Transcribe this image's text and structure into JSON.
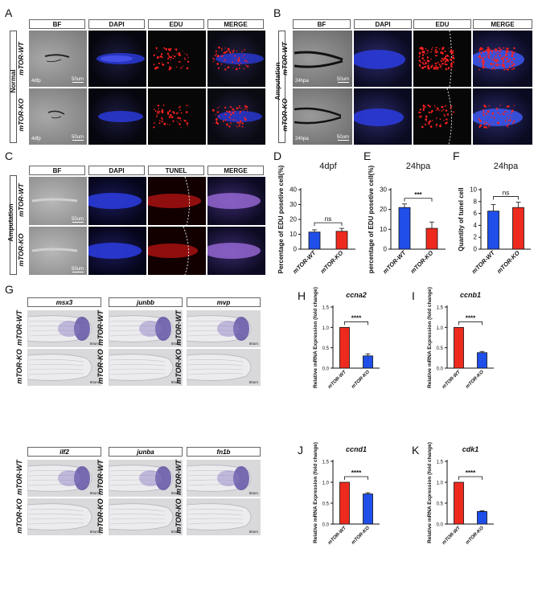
{
  "panels": {
    "A": "A",
    "B": "B",
    "C": "C",
    "D": "D",
    "E": "E",
    "F": "F",
    "G": "G",
    "H": "H",
    "I": "I",
    "J": "J",
    "K": "K"
  },
  "ab_headers": [
    "BF",
    "DAPI",
    "EDU",
    "MERGE"
  ],
  "c_headers": [
    "BF",
    "DAPI",
    "TUNEL",
    "MERGE"
  ],
  "rows": {
    "wt": "mTOR-WT",
    "ko": "mTOR-KO"
  },
  "groups": {
    "normal": "Normal",
    "amputation": "Amputation"
  },
  "stage_labels": {
    "dpf": "4dfp",
    "hpa": "24hpa"
  },
  "scale_label": "50um",
  "gene_labels": [
    "msx3",
    "junbb",
    "mvp",
    "ilf2",
    "junba",
    "fn1b"
  ],
  "colors": {
    "wt_bar": "#1f4fe8",
    "ko_bar": "#ee2a1f",
    "bf_grey": "#8e8e8e",
    "dapi_blue": "#2a3ad8",
    "edu_red": "#ff2020"
  },
  "chart_data": [
    {
      "panel": "D",
      "type": "bar",
      "title": "4dpf",
      "ylabel": "Percentage of EDU posetive cell(%)",
      "categories": [
        "mTOR-WT",
        "mTOR-KO"
      ],
      "values": [
        11.5,
        12.0
      ],
      "errors": [
        1.5,
        2.0
      ],
      "ylim": [
        0,
        40
      ],
      "yticks": [
        0,
        10,
        20,
        30,
        40
      ],
      "bar_colors": [
        "#1f4fe8",
        "#ee2a1f"
      ],
      "significance": "ns"
    },
    {
      "panel": "E",
      "type": "bar",
      "title": "24hpa",
      "ylabel": "percentage of EDU posetive cell(%)",
      "categories": [
        "mTOR-WT",
        "mTOR-KO"
      ],
      "values": [
        21.0,
        10.5
      ],
      "errors": [
        1.8,
        3.2
      ],
      "ylim": [
        0,
        30
      ],
      "yticks": [
        0,
        10,
        20,
        30
      ],
      "bar_colors": [
        "#1f4fe8",
        "#ee2a1f"
      ],
      "significance": "***"
    },
    {
      "panel": "F",
      "type": "bar",
      "title": "24hpa",
      "ylabel": "Quantity of tunel cell",
      "categories": [
        "mTOR-WT",
        "mTOR-KO"
      ],
      "values": [
        6.4,
        7.0
      ],
      "errors": [
        1.1,
        0.9
      ],
      "ylim": [
        0,
        10
      ],
      "yticks": [
        0,
        2,
        4,
        6,
        8,
        10
      ],
      "bar_colors": [
        "#1f4fe8",
        "#ee2a1f"
      ],
      "significance": "ns"
    },
    {
      "panel": "H",
      "type": "bar",
      "title": "ccna2",
      "ylabel": "Relative mRNA Expression (fold change)",
      "categories": [
        "mTOR-WT",
        "mTOR-KO"
      ],
      "values": [
        1.0,
        0.3
      ],
      "errors": [
        0.0,
        0.05
      ],
      "ylim": [
        0,
        1.5
      ],
      "yticks": [
        0.0,
        0.5,
        1.0,
        1.5
      ],
      "bar_colors": [
        "#ee2a1f",
        "#1f4fe8"
      ],
      "significance": "****"
    },
    {
      "panel": "I",
      "type": "bar",
      "title": "ccnb1",
      "ylabel": "Relative mRNA Expression (fold change)",
      "categories": [
        "mTOR-WT",
        "mTOR-KO"
      ],
      "values": [
        1.0,
        0.38
      ],
      "errors": [
        0.0,
        0.03
      ],
      "ylim": [
        0,
        1.5
      ],
      "yticks": [
        0.0,
        0.5,
        1.0,
        1.5
      ],
      "bar_colors": [
        "#ee2a1f",
        "#1f4fe8"
      ],
      "significance": "****"
    },
    {
      "panel": "J",
      "type": "bar",
      "title": "ccnd1",
      "ylabel": "Relative mRNA Expression (fold change)",
      "categories": [
        "mTOR-WT",
        "mTOR-KO"
      ],
      "values": [
        1.0,
        0.72
      ],
      "errors": [
        0.0,
        0.03
      ],
      "ylim": [
        0,
        1.5
      ],
      "yticks": [
        0.0,
        0.5,
        1.0,
        1.5
      ],
      "bar_colors": [
        "#ee2a1f",
        "#1f4fe8"
      ],
      "significance": "****"
    },
    {
      "panel": "K",
      "type": "bar",
      "title": "cdk1",
      "ylabel": "Relative mRNA Expression (fold change)",
      "categories": [
        "mTOR-WT",
        "mTOR-KO"
      ],
      "values": [
        1.0,
        0.3
      ],
      "errors": [
        0.0,
        0.02
      ],
      "ylim": [
        0,
        1.5
      ],
      "yticks": [
        0.0,
        0.5,
        1.0,
        1.5
      ],
      "bar_colors": [
        "#ee2a1f",
        "#1f4fe8"
      ],
      "significance": "****"
    }
  ]
}
